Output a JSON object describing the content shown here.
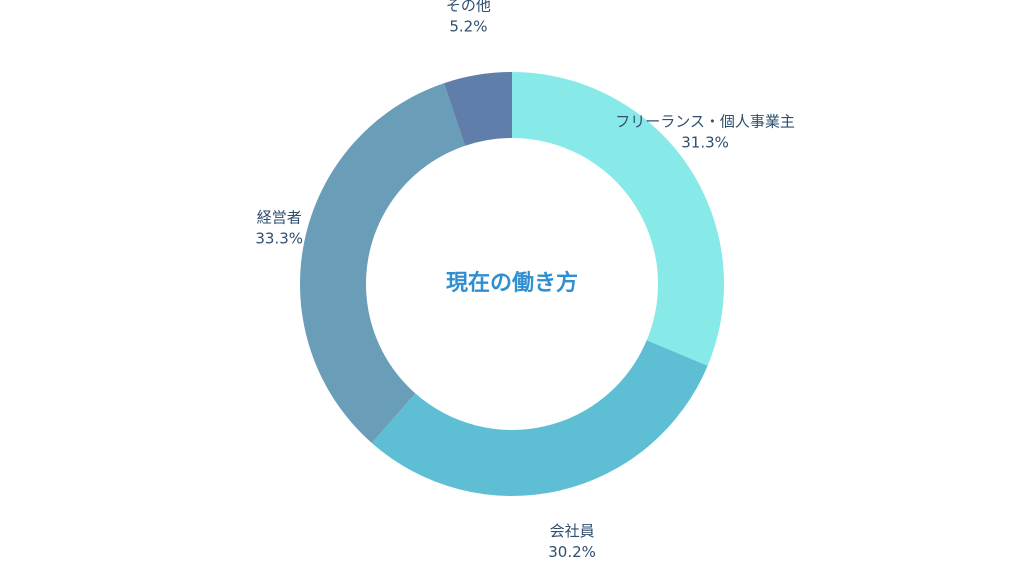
{
  "chart_data": {
    "type": "pie",
    "variant": "donut",
    "center_text": "現在の働き方",
    "center_text_color": "#2f8fd0",
    "label_color": "#2f4f6f",
    "slices": [
      {
        "label": "フリーランス・個人事業主",
        "value": 31.3,
        "display_value": "31.3%",
        "color": "#88eae8"
      },
      {
        "label": "会社員",
        "value": 30.2,
        "display_value": "30.2%",
        "color": "#5ebfd4"
      },
      {
        "label": "経営者",
        "value": 33.3,
        "display_value": "33.3%",
        "color": "#6a9db8"
      },
      {
        "label": "その他",
        "value": 5.2,
        "display_value": "5.2%",
        "color": "#5f7eaa"
      }
    ],
    "start_angle_deg": 0,
    "direction": "clockwise"
  }
}
